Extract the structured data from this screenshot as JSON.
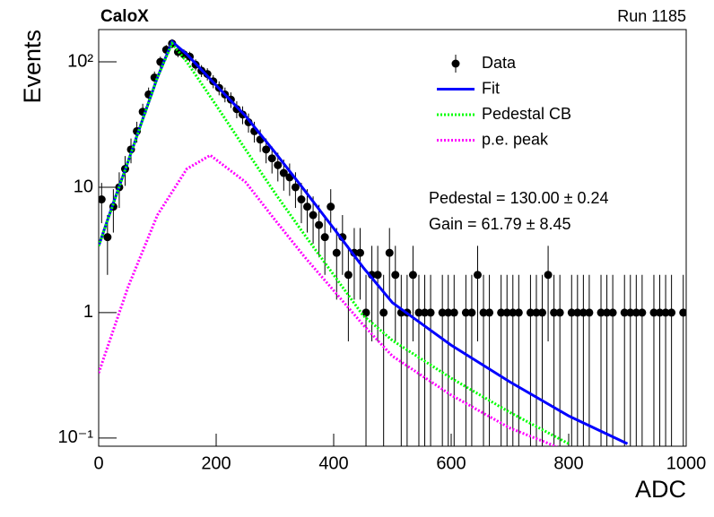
{
  "chart_data": {
    "type": "line",
    "title": "CaloX",
    "subtitle": "Run 1185",
    "x_label": "ADC",
    "y_label": "Events",
    "log_y": true,
    "legend": "upper right",
    "xlim": [
      0,
      1000
    ],
    "xticks": [
      0,
      200,
      400,
      600,
      800,
      1000
    ],
    "ylim": [
      0.086,
      181
    ],
    "yticks": [
      {
        "value": 0.1,
        "label": "10⁻¹"
      },
      1,
      10,
      {
        "value": 100,
        "label": "10²"
      }
    ],
    "annotations": [
      "Pedestal = 130.00 ± 0.24",
      "Gain = 61.79 ± 8.45"
    ],
    "series": [
      {
        "name": "Data",
        "color": "#000000",
        "marker": true,
        "x": [
          5,
          15,
          25,
          35,
          45,
          55,
          65,
          75,
          85,
          95,
          105,
          115,
          125,
          135,
          145,
          155,
          165,
          175,
          185,
          195,
          205,
          215,
          225,
          235,
          245,
          255,
          265,
          275,
          285,
          295,
          305,
          315,
          325,
          335,
          345,
          355,
          365,
          375,
          385,
          395,
          405,
          415,
          425,
          435,
          445,
          455,
          465,
          475,
          485,
          495,
          505,
          515,
          525,
          535,
          545,
          555,
          565,
          575,
          585,
          595,
          605,
          615,
          625,
          635,
          645,
          655,
          665,
          675,
          685,
          695,
          705,
          715,
          725,
          735,
          745,
          755,
          765,
          775,
          785,
          795,
          805,
          815,
          825,
          835,
          845,
          855,
          865,
          875,
          885,
          895,
          905,
          915,
          925,
          935,
          945,
          955,
          965,
          975,
          985,
          995
        ],
        "values": [
          8,
          4,
          7,
          10,
          14,
          20,
          28,
          40,
          55,
          75,
          100,
          125,
          140,
          120,
          115,
          110,
          95,
          85,
          80,
          70,
          62,
          55,
          50,
          42,
          38,
          33,
          28,
          24,
          20,
          17,
          15,
          13,
          12,
          10,
          8,
          7,
          6,
          5,
          4,
          7,
          3,
          4,
          2,
          3,
          3,
          1,
          2,
          2,
          1,
          3,
          2,
          1,
          1,
          2,
          1,
          1,
          1,
          null,
          1,
          1,
          1,
          null,
          1,
          1,
          2,
          1,
          1,
          null,
          1,
          1,
          1,
          1,
          null,
          1,
          1,
          1,
          2,
          1,
          1,
          null,
          1,
          1,
          1,
          1,
          null,
          1,
          1,
          1,
          null,
          1,
          1,
          1,
          1,
          null,
          1,
          1,
          1,
          1,
          null,
          1
        ],
        "errors": [
          2.83,
          2,
          2.65,
          3.16,
          3.74,
          4.47,
          5.29,
          6.32,
          7.42,
          8.66,
          10,
          11.18,
          11.83,
          10.95,
          10.72,
          10.49,
          9.75,
          9.22,
          8.94,
          8.37,
          7.87,
          7.42,
          7.07,
          6.48,
          6.16,
          5.74,
          5.29,
          4.9,
          4.47,
          4.12,
          3.87,
          3.61,
          3.46,
          3.16,
          2.83,
          2.65,
          2.45,
          2.24,
          2,
          2.65,
          1.73,
          2,
          1.41,
          1.73,
          1.73,
          1,
          1.41,
          1.41,
          1,
          1.73,
          1.41,
          1,
          1,
          1.41,
          1,
          1,
          1,
          null,
          1,
          1,
          1,
          null,
          1,
          1,
          1.41,
          1,
          1,
          null,
          1,
          1,
          1,
          1,
          null,
          1,
          1,
          1,
          1.41,
          1,
          1,
          null,
          1,
          1,
          1,
          1,
          null,
          1,
          1,
          1,
          null,
          1,
          1,
          1,
          1,
          null,
          1,
          1,
          1,
          1,
          null,
          1
        ]
      },
      {
        "name": "Fit",
        "color": "#0000ff",
        "dash": false,
        "x": [
          0,
          25,
          50,
          75,
          100,
          125,
          150,
          200,
          250,
          300,
          350,
          400,
          450,
          500,
          600,
          700,
          800,
          900
        ],
        "values": [
          3.4,
          7.5,
          16,
          35,
          75,
          145,
          115,
          65,
          37,
          19,
          9.5,
          4.7,
          2.3,
          1.2,
          0.55,
          0.28,
          0.15,
          0.09
        ]
      },
      {
        "name": "Pedestal CB",
        "color": "#00ff00",
        "dash": true,
        "x": [
          0,
          50,
          100,
          125,
          150,
          200,
          250,
          300,
          350,
          400,
          450,
          500,
          600,
          700,
          800
        ],
        "values": [
          3.4,
          16,
          75,
          140,
          100,
          45,
          20,
          9,
          4.2,
          2,
          0.95,
          0.6,
          0.3,
          0.16,
          0.09
        ]
      },
      {
        "name": "p.e. peak",
        "color": "#ff00ff",
        "dash": true,
        "x": [
          0,
          50,
          100,
          150,
          190,
          250,
          300,
          350,
          400,
          450,
          500,
          600,
          700,
          780
        ],
        "values": [
          0.33,
          1.6,
          6,
          14,
          18,
          11,
          5.5,
          2.8,
          1.5,
          0.8,
          0.45,
          0.22,
          0.12,
          0.085
        ]
      }
    ]
  }
}
